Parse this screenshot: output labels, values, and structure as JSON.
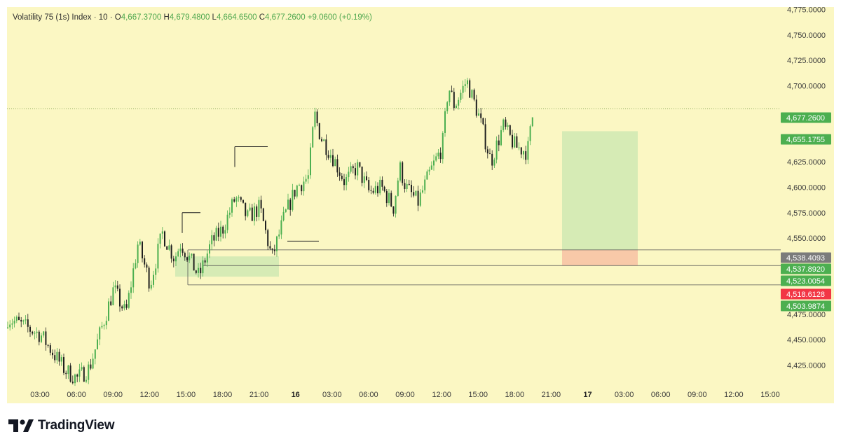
{
  "legend": {
    "symbol": "Volatility 75 (1s) Index · 10 ·",
    "open_label": "O",
    "open": "4,667.3700",
    "high_label": "H",
    "high": "4,679.4800",
    "low_label": "L",
    "low": "4,664.6500",
    "close_label": "C",
    "close": "4,677.2600",
    "change": "+9.0600 (+0.19%)"
  },
  "chart_data": {
    "type": "candlestick",
    "title": "",
    "ylim": [
      4412,
      4785
    ],
    "y_ticks": [
      "4,775.0000",
      "4,750.0000",
      "4,725.0000",
      "4,700.0000",
      "4,625.0000",
      "4,600.0000",
      "4,575.0000",
      "4,550.0000",
      "4,475.0000",
      "4,450.0000",
      "4,425.0000"
    ],
    "x_ticks": [
      "03:00",
      "06:00",
      "09:00",
      "12:00",
      "15:00",
      "18:00",
      "21:00",
      "16",
      "03:00",
      "06:00",
      "09:00",
      "12:00",
      "15:00",
      "18:00",
      "21:00",
      "17",
      "03:00",
      "06:00",
      "09:00",
      "12:00",
      "15:00"
    ],
    "x_bold": [
      "16",
      "17"
    ],
    "trend_points": [
      [
        "03:00",
        4455
      ],
      [
        "05:00",
        4420
      ],
      [
        "06:00",
        4412
      ],
      [
        "07:00",
        4422
      ],
      [
        "09:00",
        4500
      ],
      [
        "10:00",
        4475
      ],
      [
        "11:00",
        4545
      ],
      [
        "12:00",
        4505
      ],
      [
        "13:00",
        4555
      ],
      [
        "14:00",
        4530
      ],
      [
        "14:30",
        4545
      ],
      [
        "15:00",
        4535
      ],
      [
        "16:00",
        4512
      ],
      [
        "17:00",
        4545
      ],
      [
        "18:00",
        4560
      ],
      [
        "19:00",
        4590
      ],
      [
        "20:00",
        4570
      ],
      [
        "21:00",
        4580
      ],
      [
        "22:00",
        4530
      ],
      [
        "23:00",
        4570
      ],
      [
        "00:00",
        4600
      ],
      [
        "01:00",
        4610
      ],
      [
        "01:30",
        4672
      ],
      [
        "02:00",
        4650
      ],
      [
        "03:00",
        4630
      ],
      [
        "04:00",
        4605
      ],
      [
        "05:00",
        4620
      ],
      [
        "06:00",
        4595
      ],
      [
        "07:00",
        4600
      ],
      [
        "08:00",
        4580
      ],
      [
        "08:30",
        4620
      ],
      [
        "09:00",
        4600
      ],
      [
        "10:00",
        4585
      ],
      [
        "11:00",
        4615
      ],
      [
        "12:00",
        4640
      ],
      [
        "12:30",
        4700
      ],
      [
        "13:00",
        4680
      ],
      [
        "14:00",
        4705
      ],
      [
        "15:00",
        4670
      ],
      [
        "16:00",
        4625
      ],
      [
        "17:00",
        4660
      ],
      [
        "18:00",
        4640
      ],
      [
        "19:00",
        4635
      ],
      [
        "19:30",
        4677
      ]
    ],
    "price_tags": [
      {
        "value": "4,677.2600",
        "color": "#4caf50"
      },
      {
        "value": "4,655.1755",
        "color": "#4caf50"
      },
      {
        "value": "4,538.4093",
        "color": "#7b7b7b"
      },
      {
        "value": "4,537.8920",
        "color": "#4caf50"
      },
      {
        "value": "4,523.0054",
        "color": "#4caf50"
      },
      {
        "value": "4,518.6128",
        "color": "#f23645"
      },
      {
        "value": "4,503.9874",
        "color": "#4caf50"
      }
    ],
    "position_tool": {
      "entry": 4538.4093,
      "target": 4655.1755,
      "stop": 4523.0054,
      "profit_color": "#d6ebb5",
      "loss_color": "#f8c9a8"
    },
    "levels": [
      4538.4093,
      4523.0054,
      4503.9874
    ],
    "colors": {
      "up": "#4caf50",
      "down": "#1f1f1f",
      "background": "#fbf7c3"
    }
  },
  "branding": {
    "name": "TradingView"
  }
}
